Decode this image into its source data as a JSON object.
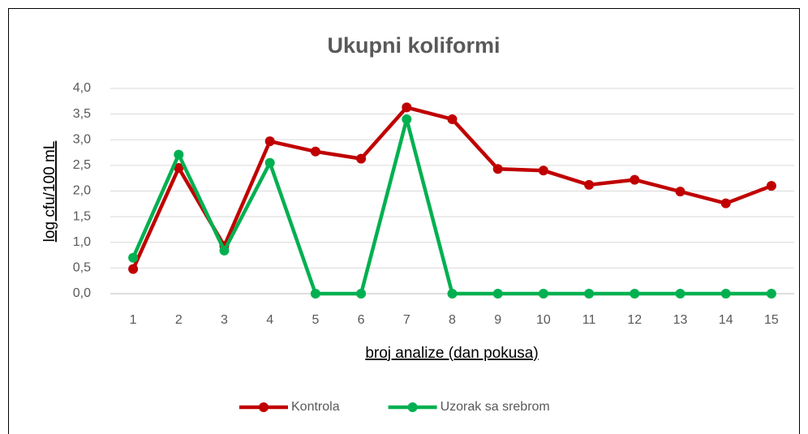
{
  "chart_data": {
    "type": "line",
    "title": "Ukupni koliformi",
    "y_label": "log cfu/100 mL",
    "x_label": "broj analize (dan pokusa)",
    "categories": [
      "1",
      "2",
      "3",
      "4",
      "5",
      "6",
      "7",
      "8",
      "9",
      "10",
      "11",
      "12",
      "13",
      "14",
      "15"
    ],
    "series": [
      {
        "name": "Kontrola",
        "color": "#c00000",
        "values": [
          0.48,
          2.45,
          0.93,
          2.97,
          2.77,
          2.63,
          3.63,
          3.4,
          2.43,
          2.4,
          2.12,
          2.22,
          1.99,
          1.76,
          2.1
        ]
      },
      {
        "name": "Uzorak sa srebrom",
        "color": "#00b050",
        "values": [
          0.7,
          2.71,
          0.84,
          2.55,
          0,
          0,
          3.4,
          0,
          0,
          0,
          0,
          0,
          0,
          0,
          0
        ]
      }
    ],
    "ylim": [
      0,
      4
    ],
    "yticks": [
      {
        "value": 0,
        "label": "0,0"
      },
      {
        "value": 0.5,
        "label": "0,5"
      },
      {
        "value": 1,
        "label": "1,0"
      },
      {
        "value": 1.5,
        "label": "1,5"
      },
      {
        "value": 2,
        "label": "2,0"
      },
      {
        "value": 2.5,
        "label": "2,5"
      },
      {
        "value": 3,
        "label": "3,0"
      },
      {
        "value": 3.5,
        "label": "3,5"
      },
      {
        "value": 4,
        "label": "4,0"
      }
    ],
    "grid": true,
    "legend": "bottom"
  }
}
